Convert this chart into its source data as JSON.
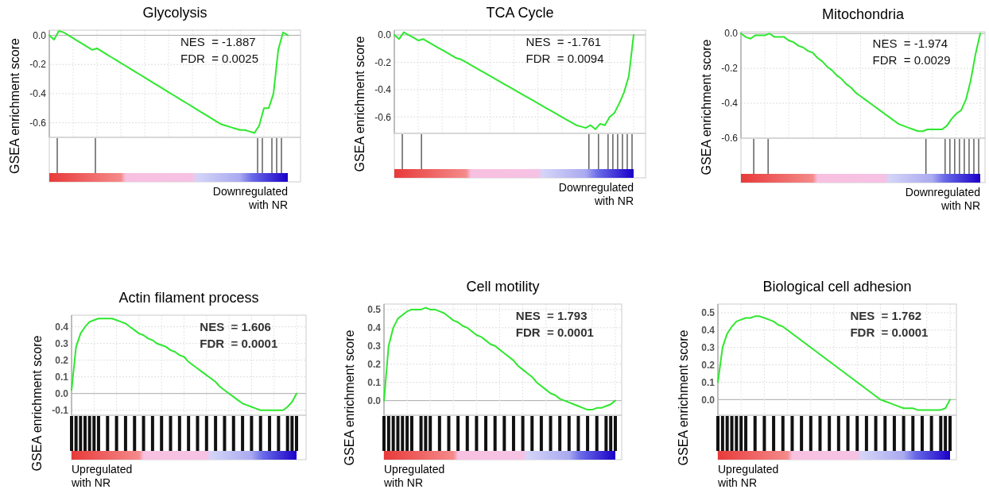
{
  "chart_data": [
    {
      "type": "line",
      "title": "Glycolysis",
      "ylabel": "GSEA enrichment score",
      "grid": true,
      "tick_labels": "y",
      "annotations": [
        "NES  = -1.887",
        "FDR  = 0.0025",
        "Downregulated",
        "with NR"
      ],
      "ylim": [
        -0.7,
        0.035
      ],
      "yticks": [
        {
          "value": 0,
          "label": "0.0"
        },
        -0.2,
        -0.4,
        -0.6
      ],
      "categories": [
        null,
        null,
        null,
        null,
        null,
        null,
        null,
        null,
        null,
        null,
        null,
        null,
        null,
        null,
        null,
        null,
        null,
        null,
        null,
        null,
        null,
        null,
        null,
        null,
        null,
        null,
        null,
        null,
        null,
        null,
        null,
        null,
        null,
        null,
        null,
        null,
        null,
        null,
        null,
        null,
        null,
        null,
        null,
        null,
        null,
        null,
        null,
        null,
        null,
        null,
        null
      ],
      "series": [
        {
          "color": "#2ee82e",
          "values": [
            0,
            -0.03,
            0.03,
            0.02,
            0.0,
            -0.02,
            -0.04,
            -0.06,
            -0.08,
            -0.1,
            -0.09,
            -0.11,
            -0.13,
            -0.15,
            -0.17,
            -0.19,
            -0.21,
            -0.23,
            -0.25,
            -0.27,
            -0.29,
            -0.31,
            -0.33,
            -0.35,
            -0.37,
            -0.39,
            -0.41,
            -0.43,
            -0.45,
            -0.47,
            -0.49,
            -0.51,
            -0.53,
            -0.55,
            -0.57,
            -0.59,
            -0.61,
            -0.62,
            -0.63,
            -0.64,
            -0.65,
            -0.65,
            -0.66,
            -0.67,
            -0.62,
            -0.5,
            -0.5,
            -0.4,
            -0.1,
            0.02,
            0.0
          ]
        }
      ]
    },
    {
      "type": "line",
      "title": "TCA Cycle",
      "ylabel": "GSEA enrichment score",
      "grid": true,
      "tick_labels": "y",
      "annotations": [
        "NES  = -1.761",
        "FDR  = 0.0094",
        "Downregulated",
        "with NR"
      ],
      "ylim": [
        -0.72,
        0.035
      ],
      "yticks": [
        {
          "value": 0,
          "label": "0.0"
        },
        -0.2,
        -0.4,
        -0.6
      ],
      "categories": [
        null,
        null,
        null,
        null,
        null,
        null,
        null,
        null,
        null,
        null,
        null,
        null,
        null,
        null,
        null,
        null,
        null,
        null,
        null,
        null,
        null,
        null,
        null,
        null,
        null,
        null,
        null,
        null,
        null,
        null,
        null,
        null,
        null,
        null,
        null,
        null,
        null,
        null,
        null,
        null,
        null,
        null,
        null,
        null,
        null,
        null,
        null,
        null,
        null,
        null,
        null
      ],
      "series": [
        {
          "color": "#2ee82e",
          "values": [
            0,
            -0.03,
            0.02,
            0.0,
            -0.02,
            -0.04,
            -0.03,
            -0.05,
            -0.07,
            -0.09,
            -0.11,
            -0.13,
            -0.15,
            -0.17,
            -0.18,
            -0.2,
            -0.22,
            -0.24,
            -0.26,
            -0.28,
            -0.3,
            -0.32,
            -0.34,
            -0.36,
            -0.38,
            -0.4,
            -0.42,
            -0.44,
            -0.46,
            -0.48,
            -0.5,
            -0.52,
            -0.54,
            -0.56,
            -0.58,
            -0.6,
            -0.62,
            -0.64,
            -0.66,
            -0.67,
            -0.68,
            -0.66,
            -0.69,
            -0.65,
            -0.66,
            -0.6,
            -0.57,
            -0.5,
            -0.42,
            -0.3,
            0.0
          ]
        }
      ]
    },
    {
      "type": "line",
      "title": "Mitochondria",
      "ylabel": "GSEA enrichment score",
      "grid": true,
      "tick_labels": "y",
      "annotations": [
        "NES  = -1.974",
        "FDR  = 0.0029",
        "Downregulated",
        "with NR"
      ],
      "ylim": [
        -0.6,
        0.01
      ],
      "yticks": [
        {
          "value": 0,
          "label": "0.0"
        },
        -0.2,
        -0.4,
        -0.6
      ],
      "categories": [
        null,
        null,
        null,
        null,
        null,
        null,
        null,
        null,
        null,
        null,
        null,
        null,
        null,
        null,
        null,
        null,
        null,
        null,
        null,
        null,
        null,
        null,
        null,
        null,
        null,
        null,
        null,
        null,
        null,
        null,
        null,
        null,
        null,
        null,
        null,
        null,
        null,
        null,
        null,
        null,
        null,
        null,
        null,
        null,
        null,
        null,
        null,
        null,
        null,
        null,
        null
      ],
      "series": [
        {
          "color": "#2ee82e",
          "values": [
            0,
            -0.02,
            -0.03,
            -0.01,
            -0.01,
            -0.01,
            0.0,
            -0.02,
            -0.02,
            -0.02,
            -0.04,
            -0.05,
            -0.07,
            -0.08,
            -0.1,
            -0.11,
            -0.14,
            -0.16,
            -0.19,
            -0.21,
            -0.24,
            -0.26,
            -0.29,
            -0.31,
            -0.34,
            -0.36,
            -0.38,
            -0.4,
            -0.42,
            -0.44,
            -0.46,
            -0.48,
            -0.5,
            -0.52,
            -0.53,
            -0.54,
            -0.55,
            -0.56,
            -0.56,
            -0.55,
            -0.55,
            -0.55,
            -0.55,
            -0.53,
            -0.49,
            -0.46,
            -0.44,
            -0.38,
            -0.27,
            -0.12,
            0.0
          ]
        }
      ]
    },
    {
      "type": "line",
      "title": "Actin filament process",
      "ylabel": "GSEA enrichment score",
      "grid": true,
      "tick_labels": "y",
      "annotations": [
        "NES  = 1.606",
        "FDR  = 0.0001",
        "Upregulated",
        "with NR"
      ],
      "ylim": [
        -0.13,
        0.47
      ],
      "yticks": [
        {
          "value": 0.4,
          "label": "0.4"
        },
        {
          "value": 0.3,
          "label": "0.3"
        },
        {
          "value": 0.2,
          "label": "0.2"
        },
        {
          "value": 0.1,
          "label": "0.1"
        },
        {
          "value": 0,
          "label": "0.0"
        },
        {
          "value": -0.1,
          "label": "-0.1"
        }
      ],
      "categories": [
        null,
        null,
        null,
        null,
        null,
        null,
        null,
        null,
        null,
        null,
        null,
        null,
        null,
        null,
        null,
        null,
        null,
        null,
        null,
        null,
        null,
        null,
        null,
        null,
        null,
        null,
        null,
        null,
        null,
        null,
        null,
        null,
        null,
        null,
        null,
        null,
        null,
        null,
        null,
        null,
        null,
        null,
        null,
        null,
        null,
        null,
        null,
        null,
        null,
        null,
        null
      ],
      "series": [
        {
          "color": "#2ee82e",
          "values": [
            0.02,
            0.28,
            0.36,
            0.4,
            0.43,
            0.44,
            0.45,
            0.45,
            0.45,
            0.45,
            0.44,
            0.43,
            0.42,
            0.4,
            0.38,
            0.36,
            0.35,
            0.33,
            0.32,
            0.3,
            0.29,
            0.28,
            0.26,
            0.25,
            0.23,
            0.22,
            0.19,
            0.17,
            0.15,
            0.13,
            0.11,
            0.09,
            0.07,
            0.04,
            0.02,
            0.0,
            -0.02,
            -0.04,
            -0.06,
            -0.07,
            -0.08,
            -0.09,
            -0.1,
            -0.1,
            -0.1,
            -0.1,
            -0.1,
            -0.1,
            -0.08,
            -0.05,
            0.0
          ]
        }
      ]
    },
    {
      "type": "line",
      "title": "Cell motility",
      "ylabel": "GSEA enrichment score",
      "grid": true,
      "tick_labels": "y",
      "annotations": [
        "NES  = 1.793",
        "FDR  = 0.0001",
        "Upregulated",
        "with NR"
      ],
      "ylim": [
        -0.08,
        0.53
      ],
      "yticks": [
        {
          "value": 0.5,
          "label": "0.5"
        },
        {
          "value": 0.4,
          "label": "0.4"
        },
        {
          "value": 0.3,
          "label": "0.3"
        },
        {
          "value": 0.2,
          "label": "0.2"
        },
        {
          "value": 0.1,
          "label": "0.1"
        },
        {
          "value": 0,
          "label": "0.0"
        }
      ],
      "categories": [
        null,
        null,
        null,
        null,
        null,
        null,
        null,
        null,
        null,
        null,
        null,
        null,
        null,
        null,
        null,
        null,
        null,
        null,
        null,
        null,
        null,
        null,
        null,
        null,
        null,
        null,
        null,
        null,
        null,
        null,
        null,
        null,
        null,
        null,
        null,
        null,
        null,
        null,
        null,
        null,
        null,
        null,
        null,
        null,
        null,
        null,
        null,
        null,
        null,
        null,
        null
      ],
      "series": [
        {
          "color": "#2ee82e",
          "values": [
            0.0,
            0.3,
            0.4,
            0.45,
            0.47,
            0.49,
            0.5,
            0.5,
            0.5,
            0.51,
            0.5,
            0.5,
            0.49,
            0.48,
            0.46,
            0.44,
            0.43,
            0.41,
            0.4,
            0.38,
            0.36,
            0.35,
            0.33,
            0.31,
            0.3,
            0.28,
            0.26,
            0.24,
            0.22,
            0.19,
            0.17,
            0.15,
            0.13,
            0.1,
            0.08,
            0.06,
            0.04,
            0.03,
            0.01,
            0.0,
            -0.01,
            -0.02,
            -0.03,
            -0.04,
            -0.05,
            -0.05,
            -0.04,
            -0.04,
            -0.03,
            -0.02,
            0.0
          ]
        }
      ]
    },
    {
      "type": "line",
      "title": "Biological cell adhesion",
      "ylabel": "GSEA enrichment score",
      "grid": true,
      "tick_labels": "y",
      "annotations": [
        "NES  = 1.762",
        "FDR  = 0.0001",
        "Upregulated",
        "with NR"
      ],
      "ylim": [
        -0.09,
        0.55
      ],
      "yticks": [
        {
          "value": 0.5,
          "label": "0.5"
        },
        {
          "value": 0.4,
          "label": "0.4"
        },
        {
          "value": 0.3,
          "label": "0.3"
        },
        {
          "value": 0.2,
          "label": "0.2"
        },
        {
          "value": 0.1,
          "label": "0.1"
        },
        {
          "value": 0,
          "label": "0.0"
        }
      ],
      "categories": [
        null,
        null,
        null,
        null,
        null,
        null,
        null,
        null,
        null,
        null,
        null,
        null,
        null,
        null,
        null,
        null,
        null,
        null,
        null,
        null,
        null,
        null,
        null,
        null,
        null,
        null,
        null,
        null,
        null,
        null,
        null,
        null,
        null,
        null,
        null,
        null,
        null,
        null,
        null,
        null,
        null,
        null,
        null,
        null,
        null,
        null,
        null,
        null,
        null,
        null,
        null
      ],
      "series": [
        {
          "color": "#2ee82e",
          "values": [
            0.1,
            0.3,
            0.38,
            0.42,
            0.45,
            0.46,
            0.47,
            0.47,
            0.48,
            0.48,
            0.47,
            0.46,
            0.45,
            0.43,
            0.42,
            0.4,
            0.38,
            0.36,
            0.34,
            0.32,
            0.3,
            0.28,
            0.26,
            0.24,
            0.22,
            0.2,
            0.18,
            0.16,
            0.14,
            0.12,
            0.1,
            0.08,
            0.06,
            0.04,
            0.02,
            0.0,
            -0.01,
            -0.02,
            -0.03,
            -0.04,
            -0.05,
            -0.05,
            -0.05,
            -0.06,
            -0.06,
            -0.06,
            -0.06,
            -0.06,
            -0.06,
            -0.05,
            0.0
          ]
        }
      ]
    }
  ]
}
